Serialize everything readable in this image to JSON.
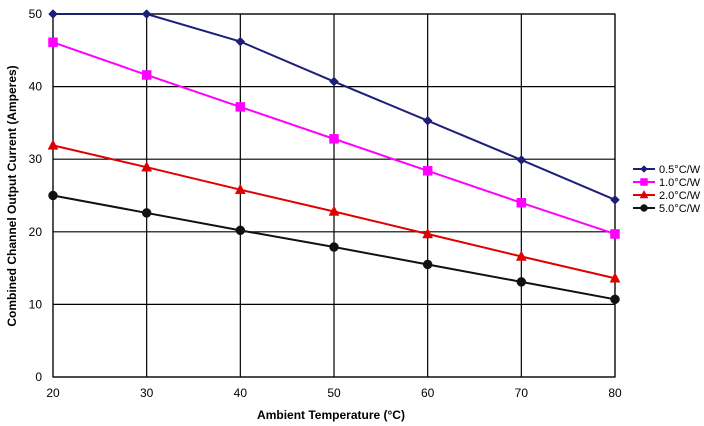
{
  "chart_data": {
    "type": "line",
    "xlabel": "Ambient Temperature (°C)",
    "ylabel": "Combined Channel Output Current (Amperes)",
    "x": [
      20,
      30,
      40,
      50,
      60,
      70,
      80
    ],
    "xlim": [
      20,
      80
    ],
    "ylim": [
      0,
      50
    ],
    "xticks": [
      "20",
      "30",
      "40",
      "50",
      "60",
      "70",
      "80"
    ],
    "yticks": [
      "0",
      "10",
      "20",
      "30",
      "40",
      "50"
    ],
    "grid": true,
    "legend_position": "right",
    "series": [
      {
        "name": "0.5°C/W",
        "color": "#1f1f7a",
        "marker": "diamond",
        "values": [
          50,
          50,
          46.2,
          40.7,
          35.3,
          29.9,
          24.4
        ]
      },
      {
        "name": "1.0°C/W",
        "color": "#ff00ff",
        "marker": "square",
        "values": [
          46.1,
          41.6,
          37.2,
          32.8,
          28.4,
          24.0,
          19.7
        ]
      },
      {
        "name": "2.0°C/W",
        "color": "#e00000",
        "marker": "triangle",
        "values": [
          31.9,
          28.9,
          25.8,
          22.8,
          19.7,
          16.6,
          13.6
        ]
      },
      {
        "name": "5.0°C/W",
        "color": "#111111",
        "marker": "circle",
        "values": [
          25.0,
          22.6,
          20.2,
          17.9,
          15.5,
          13.1,
          10.7
        ]
      }
    ]
  }
}
